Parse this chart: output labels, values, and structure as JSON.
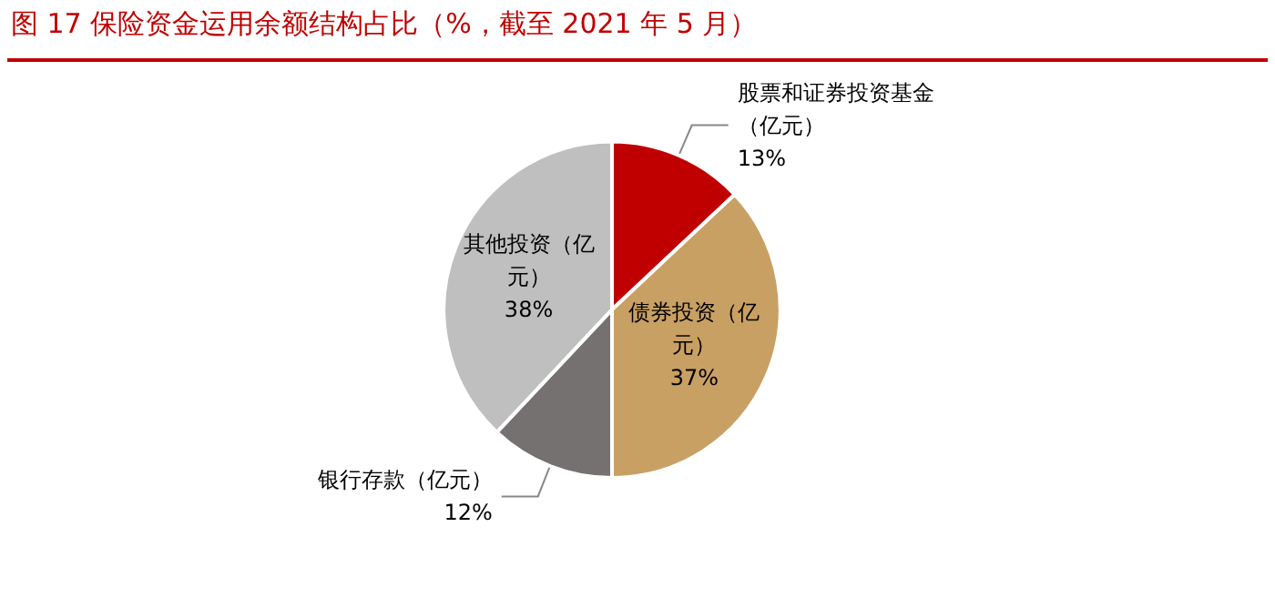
{
  "chart_data": {
    "type": "pie",
    "title": "图 17 保险资金运用余额结构占比（%，截至 2021 年 5 月）",
    "categories": [
      "股票和证券投资基金（亿元）",
      "债券投资（亿元）",
      "银行存款（亿元）",
      "其他投资（亿元）"
    ],
    "values": [
      13,
      37,
      12,
      38
    ],
    "colors": [
      "#c00000",
      "#c9a063",
      "#767171",
      "#bfbfbf"
    ],
    "legend": false,
    "value_labels": [
      "13%",
      "37%",
      "12%",
      "38%"
    ]
  }
}
